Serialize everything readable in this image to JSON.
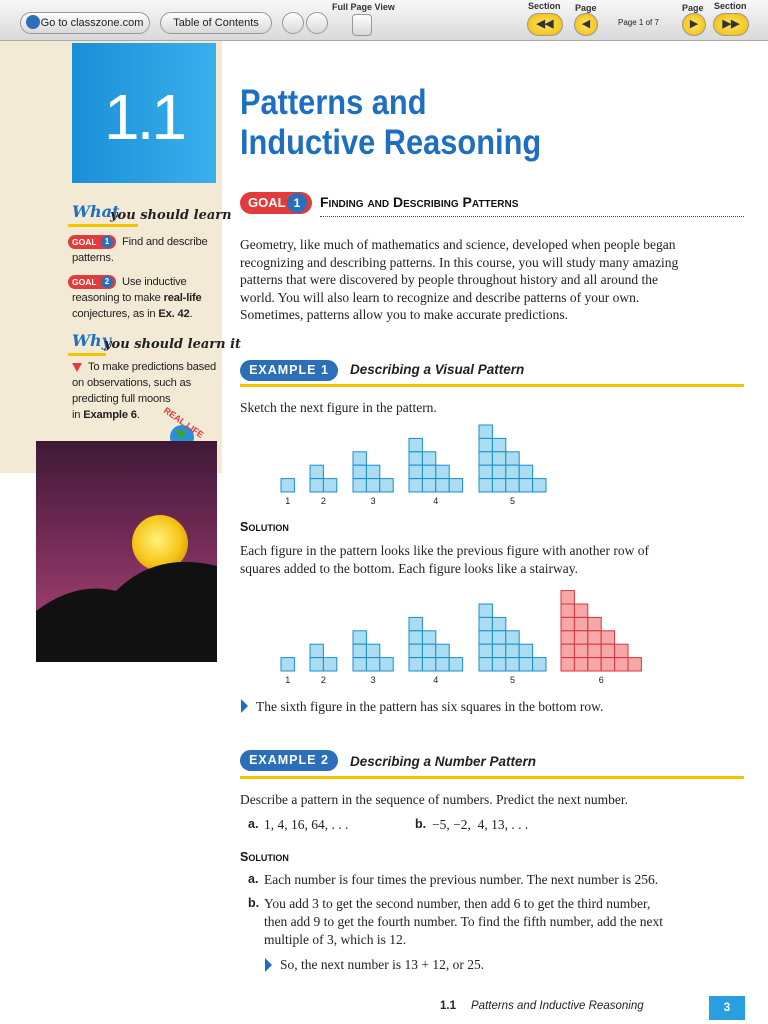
{
  "toolbar": {
    "home_link": "Go to classzone.com",
    "contents_button": "Table of Contents",
    "full_page_label": "Full Page View",
    "section_back_label": "Section",
    "page_back_label": "Page",
    "page_indicator": "Page 1 of 7",
    "page_forward_label": "Page",
    "section_forward_label": "Section"
  },
  "sidebar": {
    "lesson_number": "1.1",
    "what_word": "What",
    "what_rest": "you should learn",
    "goal_1": {
      "badge": "GOAL",
      "number": "1",
      "lines": [
        "Find and describe",
        "patterns."
      ]
    },
    "goal_2": {
      "badge": "GOAL",
      "number": "2",
      "line_1": "Use inductive",
      "line_2_start": "reasoning to make ",
      "line_2_bold": "real-life",
      "line_3_start": "conjectures, as in ",
      "line_3_bold": "Ex. 42",
      "line_3_end": "."
    },
    "why_word": "Why",
    "why_rest": "you should learn it",
    "why_lines": [
      "To make predictions based",
      "on observations, such as",
      "predicting full moons"
    ],
    "why_last_start": "in ",
    "why_last_bold": "Example 6",
    "why_last_end": ".",
    "badge": "REAL LIFE"
  },
  "header": {
    "title_line_1": "Patterns and",
    "title_line_2": "Inductive Reasoning"
  },
  "goal_section": {
    "badge": "GOAL",
    "number": "1",
    "heading": "Finding and Describing Patterns",
    "paragraph": [
      "Geometry, like much of mathematics and science, developed when people began",
      "recognizing and describing patterns. In this course, you will study many amazing",
      "patterns that were discovered by people throughout history and all around the",
      "world. You will also learn to recognize and describe patterns of your own.",
      "Sometimes, patterns allow you to make accurate predictions."
    ]
  },
  "example_1": {
    "badge": "EXAMPLE 1",
    "heading": "Describing a Visual Pattern",
    "prompt": "Sketch the next figure in the pattern.",
    "figure_labels": [
      "1",
      "2",
      "3",
      "4",
      "5"
    ],
    "solution_label": "Solution",
    "solution_lines": [
      "Each figure in the pattern looks like the previous figure with another row of",
      "squares added to the bottom. Each figure looks like a stairway."
    ],
    "answer_figure_labels": [
      "1",
      "2",
      "3",
      "4",
      "5",
      "6"
    ],
    "conclusion": "The sixth figure in the pattern has six squares in the bottom row."
  },
  "example_2": {
    "badge": "EXAMPLE 2",
    "heading": "Describing a Number Pattern",
    "prompt": "Describe a pattern in the sequence of numbers. Predict the next number.",
    "part_a_label": "a.",
    "part_a": "1, 4, 16, 64, . . .",
    "part_b_label": "b.",
    "part_b": "−5, −2,  4, 13, . . .",
    "solution_label": "Solution",
    "answer_a_label": "a.",
    "answer_a": "Each number is four times the previous number. The next number is 256.",
    "answer_b_label": "b.",
    "answer_b_lines": [
      "You add 3 to get the second number, then add 6 to get the third number,",
      "then add 9 to get the fourth number. To find the fifth number, add the next",
      "multiple of 3, which is 12."
    ],
    "conclusion": "So, the next number is 13 + 12, or 25."
  },
  "footer": {
    "section": "1.1",
    "title": "Patterns and Inductive Reasoning",
    "page": "3"
  }
}
